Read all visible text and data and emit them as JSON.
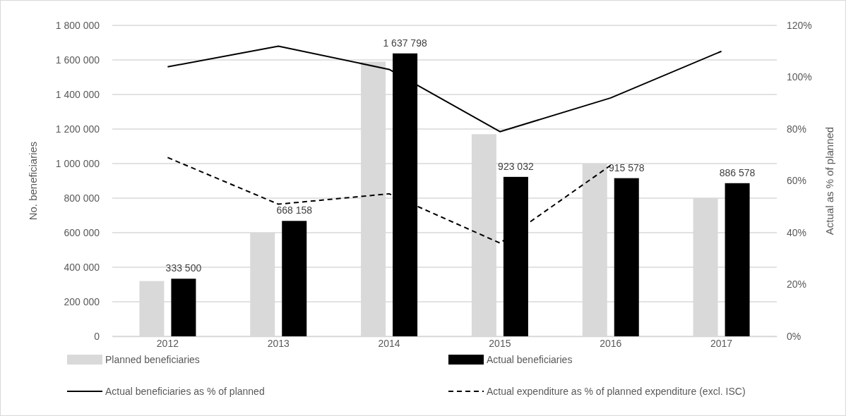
{
  "chart_data": {
    "type": "bar",
    "categories": [
      "2012",
      "2013",
      "2014",
      "2015",
      "2016",
      "2017"
    ],
    "ylabel": "No. beneficiaries",
    "y2label": "Actual as % of planned",
    "ylim": [
      0,
      1800000
    ],
    "yticks": [
      {
        "value": 0,
        "label": "0"
      },
      {
        "value": 200000,
        "label": "200 000"
      },
      {
        "value": 400000,
        "label": "400 000"
      },
      {
        "value": 600000,
        "label": "600 000"
      },
      {
        "value": 800000,
        "label": "800 000"
      },
      {
        "value": 1000000,
        "label": "1 000 000"
      },
      {
        "value": 1200000,
        "label": "1 200 000"
      },
      {
        "value": 1400000,
        "label": "1 400 000"
      },
      {
        "value": 1600000,
        "label": "1 600 000"
      },
      {
        "value": 1800000,
        "label": "1 800 000"
      }
    ],
    "y2lim": [
      0,
      120
    ],
    "y2ticks": [
      {
        "value": 0,
        "label": "0%"
      },
      {
        "value": 20,
        "label": "20%"
      },
      {
        "value": 40,
        "label": "40%"
      },
      {
        "value": 60,
        "label": "60%"
      },
      {
        "value": 80,
        "label": "80%"
      },
      {
        "value": 100,
        "label": "100%"
      },
      {
        "value": 120,
        "label": "120%"
      }
    ],
    "grid": "y",
    "legend": "bottom",
    "series": [
      {
        "name": "Planned beneficiaries",
        "color": "#d9d9d9",
        "values": [
          320000,
          600000,
          1590000,
          1170000,
          1000000,
          800000
        ]
      },
      {
        "name": "Actual beneficiaries",
        "color": "#000000",
        "values": [
          333500,
          668158,
          1637798,
          923032,
          915578,
          886578
        ],
        "value_labels": [
          "333 500",
          "668 158",
          "1 637 798",
          "923 032",
          "915 578",
          "886 578"
        ]
      },
      {
        "name": "Actual beneficiaries as % of planned",
        "type": "line",
        "axis": "y2",
        "color": "#000000",
        "line_style": "solid",
        "values": [
          104,
          112,
          103,
          79,
          92,
          110
        ]
      },
      {
        "name": "Actual expenditure as % of planned expenditure (excl. ISC)",
        "type": "line",
        "axis": "y2",
        "color": "#000000",
        "line_style": "dashed",
        "values": [
          69,
          51,
          55,
          36,
          66,
          null
        ]
      }
    ]
  }
}
